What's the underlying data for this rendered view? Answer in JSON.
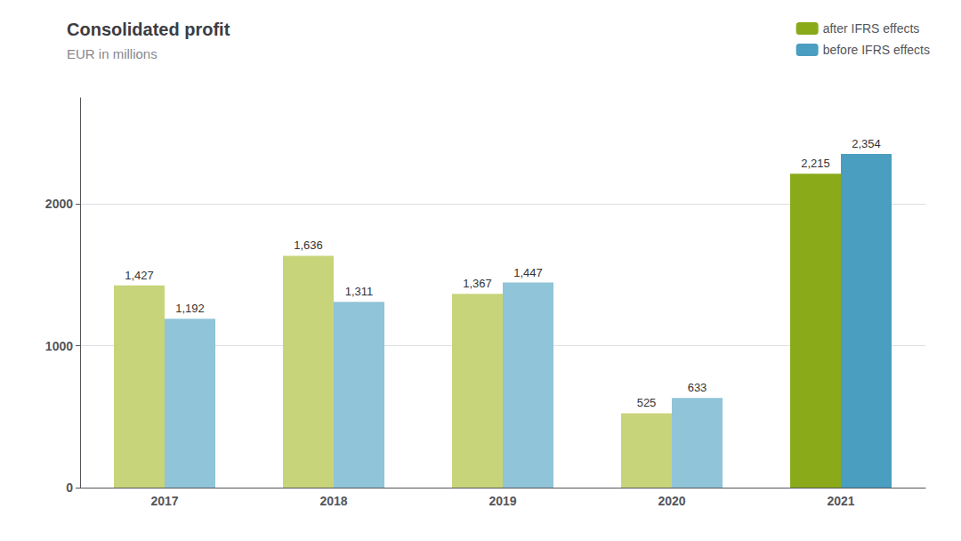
{
  "chart_data": {
    "type": "bar",
    "title": "Consolidated profit",
    "subtitle": "EUR in millions",
    "categories": [
      "2017",
      "2018",
      "2019",
      "2020",
      "2021"
    ],
    "series": [
      {
        "name": "after IFRS effects",
        "color": "#8aaa1a",
        "colors": [
          "#c8d47a",
          "#c8d47a",
          "#c8d47a",
          "#c8d47a",
          "#8aaa1a"
        ],
        "values": [
          1427,
          1636,
          1367,
          525,
          2215
        ],
        "value_labels": [
          "1,427",
          "1,636",
          "1,367",
          "525",
          "2,215"
        ]
      },
      {
        "name": "before IFRS effects",
        "color": "#4a9ec0",
        "colors": [
          "#90c4d8",
          "#90c4d8",
          "#90c4d8",
          "#90c4d8",
          "#4a9ec0"
        ],
        "values": [
          1192,
          1311,
          1447,
          633,
          2354
        ],
        "value_labels": [
          "1,192",
          "1,311",
          "1,447",
          "633",
          "2,354"
        ]
      }
    ],
    "ylim": [
      0,
      2750
    ],
    "yticks": [
      0,
      1000,
      2000
    ],
    "grid": true,
    "legend": "top-right",
    "data_labels": true
  }
}
